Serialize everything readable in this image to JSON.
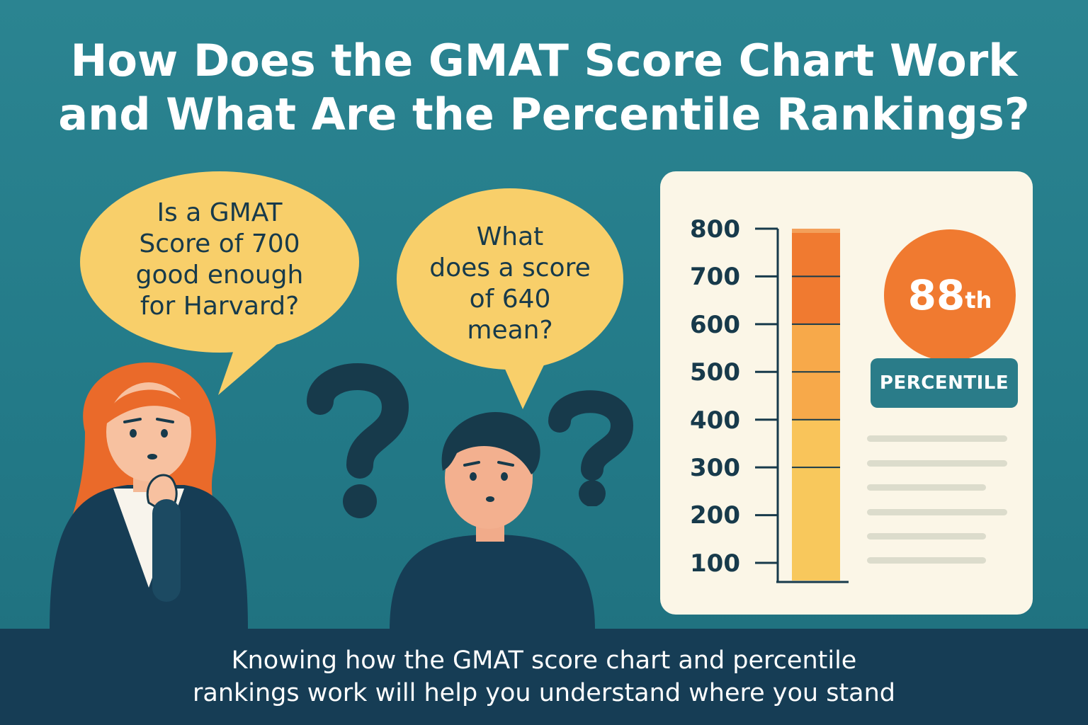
{
  "title": {
    "line1": "How Does the GMAT Score Chart Work",
    "line2": "and What Are the Percentile Rankings?"
  },
  "bubble_left": {
    "lines": [
      "Is a GMAT",
      "Score of 700",
      "good enough",
      "for Harvard?"
    ]
  },
  "bubble_right": {
    "lines": [
      "What",
      "does a score",
      "of 640",
      "mean?"
    ]
  },
  "chart_data": {
    "type": "bar",
    "y_ticks": [
      "800",
      "700",
      "600",
      "500",
      "400",
      "300",
      "200",
      "100"
    ],
    "ylim": [
      100,
      800
    ],
    "bands": [
      {
        "from": 100,
        "to": 300,
        "color": "#f8c85c"
      },
      {
        "from": 300,
        "to": 400,
        "color": "#f9c45a"
      },
      {
        "from": 400,
        "to": 600,
        "color": "#f7a94a"
      },
      {
        "from": 600,
        "to": 800,
        "color": "#f07a30"
      }
    ]
  },
  "percentile": {
    "value": "88",
    "suffix": "th",
    "label": "PERCENTILE"
  },
  "colors": {
    "background": "#237a88",
    "bubble": "#f8cf6a",
    "dark": "#163d55",
    "accent": "#f07a30"
  },
  "footer": {
    "line1": "Knowing how the GMAT score chart and percentile",
    "line2": "rankings work will help you understand where you stand"
  }
}
